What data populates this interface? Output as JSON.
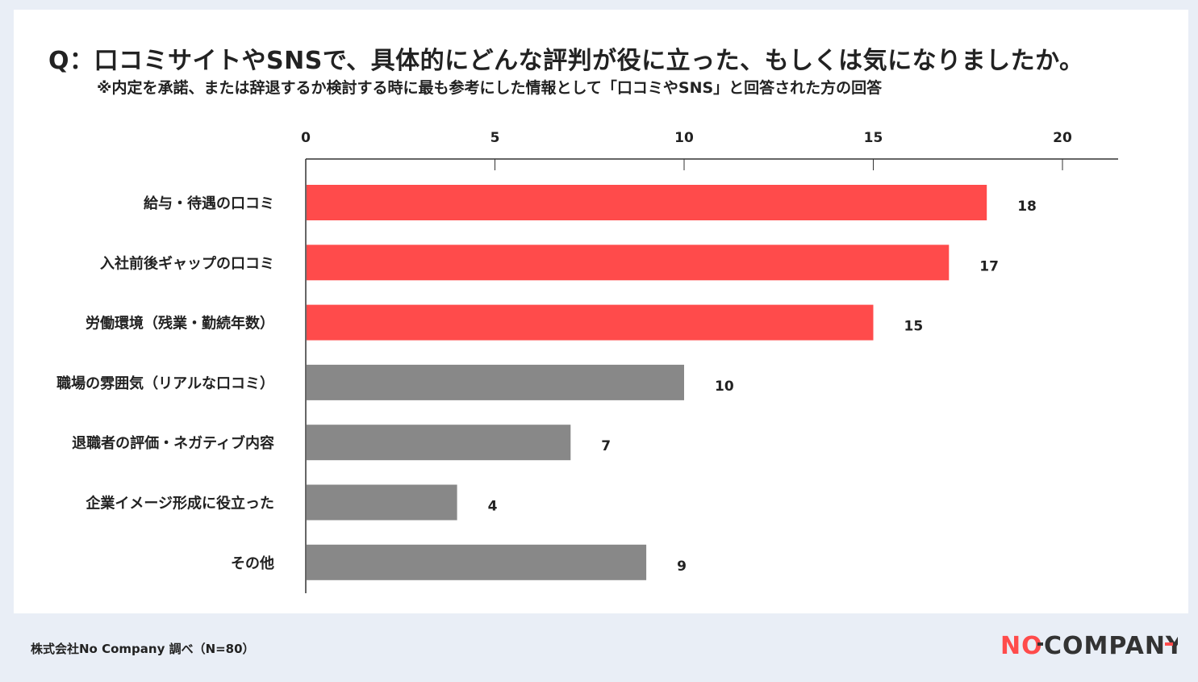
{
  "header": {
    "title": "Q：口コミサイトやSNSで、具体的にどんな評判が役に立った、もしくは気になりましたか。",
    "subtitle": "※内定を承諾、または辞退するか検討する時に最も参考にした情報として「口コミやSNS」と回答された方の回答"
  },
  "footer": {
    "source": "株式会社No Company 調べ（N=80）",
    "logo_text": "NO COMPANY"
  },
  "colors": {
    "highlight": "#ff4b4b",
    "normal": "#888888",
    "axis": "#333333"
  },
  "chart_data": {
    "type": "bar",
    "orientation": "horizontal",
    "categories": [
      "給与・待遇の口コミ",
      "入社前後ギャップの口コミ",
      "労働環境（残業・勤続年数）",
      "職場の雰囲気（リアルな口コミ）",
      "退職者の評価・ネガティブ内容",
      "企業イメージ形成に役立った",
      "その他"
    ],
    "values": [
      18,
      17,
      15,
      10,
      7,
      4,
      9
    ],
    "highlighted": [
      true,
      true,
      true,
      false,
      false,
      false,
      false
    ],
    "xlim": [
      0,
      21
    ],
    "xticks": [
      0,
      5,
      10,
      15,
      20
    ],
    "x_axis_position": "top",
    "grid": false,
    "data_labels": true
  }
}
